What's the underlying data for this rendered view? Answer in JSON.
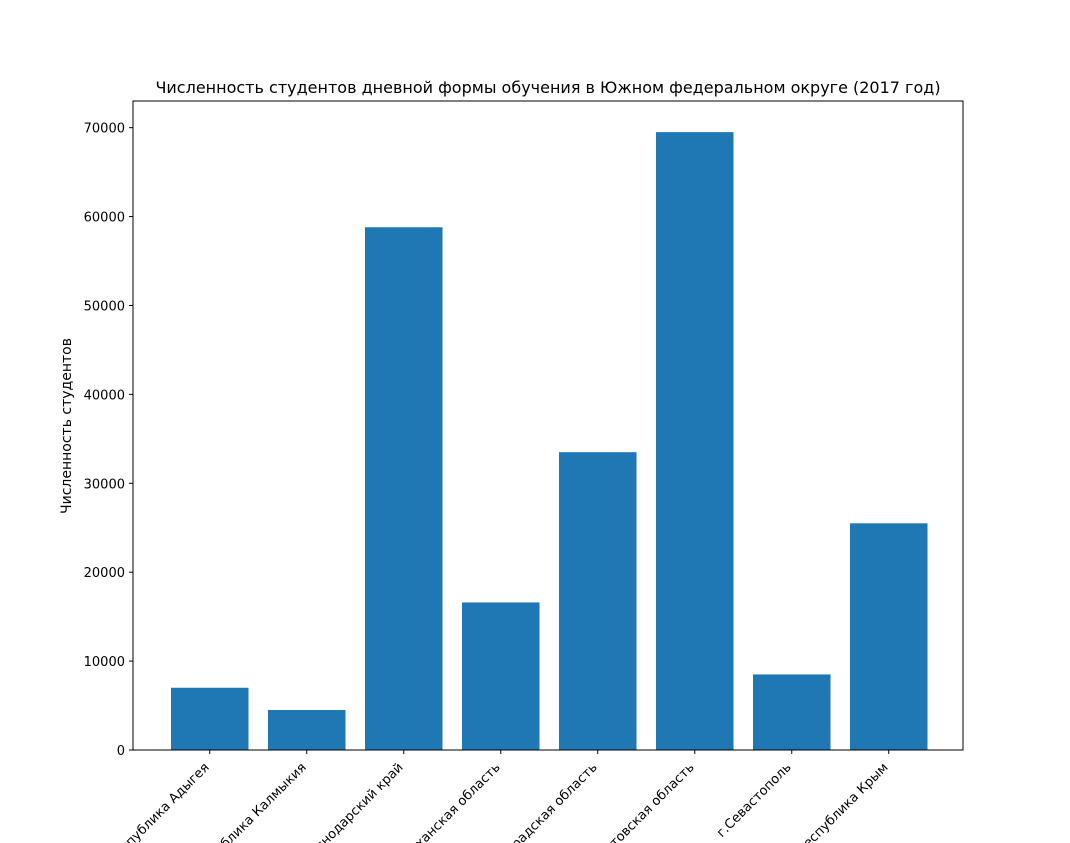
{
  "chart_data": {
    "type": "bar",
    "title": "Численность студентов дневной формы обучения в Южном федеральном округе (2017 год)",
    "xlabel": "",
    "ylabel": "Численность студентов",
    "categories": [
      "Республика Адыгея",
      "Республика Калмыкия",
      "Краснодарский край",
      "Астраханская область",
      "Волгоградская область",
      "Ростовская область",
      "г.Севастополь",
      "Республика Крым"
    ],
    "values": [
      7000,
      4500,
      58800,
      16600,
      33500,
      69500,
      8500,
      25500
    ],
    "ylim": [
      0,
      73000
    ],
    "yticks": [
      0,
      10000,
      20000,
      30000,
      40000,
      50000,
      60000,
      70000
    ],
    "bar_color": "#1f77b4",
    "grid": false,
    "legend": "none"
  }
}
